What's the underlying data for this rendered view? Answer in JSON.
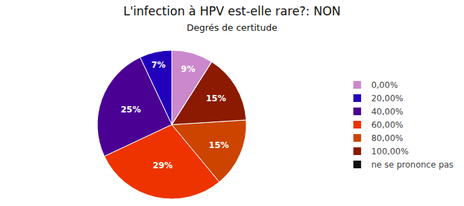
{
  "chart_data": {
    "type": "pie",
    "title": "L'infection à HPV est-elle rare?: NON",
    "subtitle": "Degrés de certitude",
    "categories": [
      "0,00%",
      "20,00%",
      "40,00%",
      "60,00%",
      "80,00%",
      "100,00%",
      "ne se prononce pas"
    ],
    "values": [
      9,
      7,
      25,
      29,
      15,
      15,
      0
    ],
    "value_labels": [
      "9%",
      "7%",
      "25%",
      "29%",
      "15%",
      "15%",
      null
    ],
    "colors": [
      "#cc88cc",
      "#2200bb",
      "#4b0094",
      "#ee3300",
      "#cc4400",
      "#8b1a00",
      "#111111"
    ],
    "data_labels": true,
    "legend": "right"
  }
}
